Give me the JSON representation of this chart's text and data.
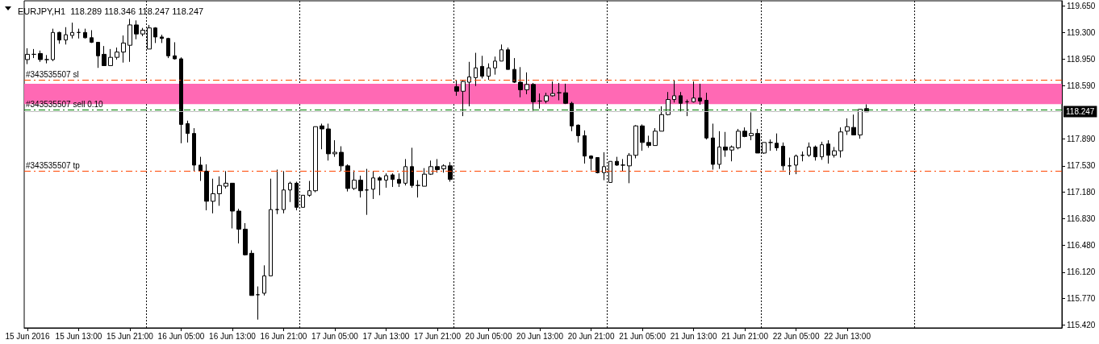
{
  "chart_data": {
    "type": "candlestick",
    "title": "EURJPY,H1  118.289 118.346 118.247 118.247",
    "categories": [
      "15 Jun 2016",
      null,
      null,
      null,
      null,
      null,
      null,
      null,
      "15 Jun 13:00",
      null,
      null,
      null,
      null,
      null,
      null,
      null,
      "15 Jun 21:00",
      null,
      null,
      null,
      null,
      null,
      null,
      null,
      "16 Jun 05:00",
      null,
      null,
      null,
      null,
      null,
      null,
      null,
      "16 Jun 13:00",
      null,
      null,
      null,
      null,
      null,
      null,
      null,
      "16 Jun 21:00",
      null,
      null,
      null,
      null,
      null,
      null,
      null,
      "17 Jun 05:00",
      null,
      null,
      null,
      null,
      null,
      null,
      null,
      "17 Jun 13:00",
      null,
      null,
      null,
      null,
      null,
      null,
      null,
      "17 Jun 21:00",
      null,
      null,
      null,
      null,
      null,
      null,
      null,
      "20 Jun 05:00",
      null,
      null,
      null,
      null,
      null,
      null,
      null,
      "20 Jun 13:00",
      null,
      null,
      null,
      null,
      null,
      null,
      null,
      "20 Jun 21:00",
      null,
      null,
      null,
      null,
      null,
      null,
      null,
      "21 Jun 05:00",
      null,
      null,
      null,
      null,
      null,
      null,
      null,
      "21 Jun 13:00",
      null,
      null,
      null,
      null,
      null,
      null,
      null,
      "21 Jun 21:00",
      null,
      null,
      null,
      null,
      null,
      null,
      null,
      "22 Jun 05:00",
      null,
      null,
      null,
      null,
      null,
      null,
      null,
      "22 Jun 13:00",
      null,
      null,
      null,
      null,
      null,
      null,
      null,
      null,
      null,
      null,
      null,
      null,
      null,
      null,
      null,
      null,
      null,
      null,
      null,
      null,
      null,
      null,
      null,
      null,
      null,
      null,
      null,
      null,
      null,
      null,
      null,
      null,
      null
    ],
    "ohlc": [
      [
        118.94,
        119.09,
        118.88,
        119.01
      ],
      [
        119.01,
        119.08,
        118.96,
        119.01
      ],
      [
        119.02,
        119.06,
        118.91,
        118.94
      ],
      [
        118.94,
        119.0,
        118.89,
        118.94
      ],
      [
        118.94,
        119.35,
        118.92,
        119.3
      ],
      [
        119.3,
        119.31,
        119.15,
        119.2
      ],
      [
        119.2,
        119.37,
        119.14,
        119.27
      ],
      [
        119.26,
        119.43,
        119.22,
        119.3
      ],
      [
        119.3,
        119.35,
        119.22,
        119.3
      ],
      [
        119.3,
        119.35,
        119.22,
        119.23
      ],
      [
        119.23,
        119.33,
        119.16,
        119.17
      ],
      [
        119.17,
        119.17,
        118.83,
        118.99
      ],
      [
        119.01,
        119.12,
        118.86,
        118.86
      ],
      [
        118.86,
        119.08,
        118.86,
        118.97
      ],
      [
        118.97,
        119.1,
        118.94,
        119.04
      ],
      [
        119.04,
        119.26,
        118.9,
        119.16
      ],
      [
        119.13,
        119.48,
        118.91,
        119.4
      ],
      [
        119.4,
        119.46,
        119.21,
        119.28
      ],
      [
        119.28,
        119.36,
        119.25,
        119.33
      ],
      [
        119.08,
        119.4,
        119.08,
        119.36
      ],
      [
        119.36,
        119.37,
        119.16,
        119.24
      ],
      [
        119.24,
        119.27,
        119.16,
        119.22
      ],
      [
        119.22,
        119.23,
        118.96,
        118.99
      ],
      [
        118.99,
        119.17,
        118.94,
        118.95
      ],
      [
        118.95,
        118.97,
        117.83,
        118.08
      ],
      [
        118.09,
        118.13,
        117.84,
        117.96
      ],
      [
        117.96,
        118.03,
        117.46,
        117.54
      ],
      [
        117.54,
        117.65,
        117.33,
        117.46
      ],
      [
        117.46,
        117.55,
        116.94,
        117.06
      ],
      [
        117.06,
        117.36,
        116.9,
        117.16
      ],
      [
        117.16,
        117.39,
        117.0,
        117.27
      ],
      [
        117.26,
        117.46,
        117.23,
        117.3
      ],
      [
        117.3,
        117.3,
        116.7,
        116.93
      ],
      [
        116.93,
        116.96,
        116.5,
        116.69
      ],
      [
        116.69,
        116.77,
        116.34,
        116.35
      ],
      [
        116.37,
        116.41,
        115.81,
        115.81
      ],
      [
        115.82,
        115.93,
        115.49,
        115.82
      ],
      [
        115.84,
        116.21,
        115.81,
        116.07
      ],
      [
        116.07,
        117.36,
        116.07,
        116.95
      ],
      [
        116.95,
        117.48,
        116.89,
        116.95
      ],
      [
        116.95,
        117.46,
        116.9,
        117.21
      ],
      [
        117.21,
        117.32,
        117.05,
        117.3
      ],
      [
        117.3,
        117.32,
        116.94,
        116.98
      ],
      [
        116.98,
        117.14,
        116.98,
        117.14
      ],
      [
        117.14,
        117.33,
        117.12,
        117.2
      ],
      [
        117.2,
        118.05,
        117.18,
        118.05
      ],
      [
        118.06,
        118.09,
        117.75,
        118.02
      ],
      [
        118.02,
        118.09,
        117.6,
        117.69
      ],
      [
        117.69,
        117.87,
        117.65,
        117.71
      ],
      [
        117.71,
        117.79,
        117.46,
        117.53
      ],
      [
        117.53,
        117.55,
        117.19,
        117.23
      ],
      [
        117.23,
        117.47,
        117.21,
        117.34
      ],
      [
        117.34,
        117.4,
        117.11,
        117.2
      ],
      [
        117.21,
        117.49,
        116.88,
        117.21
      ],
      [
        117.22,
        117.46,
        117.09,
        117.37
      ],
      [
        117.37,
        117.39,
        117.14,
        117.34
      ],
      [
        117.34,
        117.43,
        117.24,
        117.4
      ],
      [
        117.41,
        117.43,
        117.25,
        117.35
      ],
      [
        117.35,
        117.43,
        117.25,
        117.3
      ],
      [
        117.3,
        117.62,
        117.27,
        117.52
      ],
      [
        117.52,
        117.77,
        117.24,
        117.27
      ],
      [
        117.27,
        117.34,
        117.11,
        117.27
      ],
      [
        117.26,
        117.5,
        117.26,
        117.42
      ],
      [
        117.42,
        117.6,
        117.41,
        117.52
      ],
      [
        117.52,
        117.62,
        117.44,
        117.48
      ],
      [
        117.49,
        117.55,
        117.44,
        117.53
      ],
      [
        117.53,
        117.58,
        117.32,
        117.35
      ],
      [
        118.58,
        118.67,
        118.46,
        118.52
      ],
      [
        118.52,
        118.66,
        118.19,
        118.65
      ],
      [
        118.64,
        118.91,
        118.32,
        118.71
      ],
      [
        118.7,
        119.03,
        118.59,
        118.83
      ],
      [
        118.85,
        118.99,
        118.69,
        118.72
      ],
      [
        118.72,
        118.89,
        118.67,
        118.83
      ],
      [
        118.83,
        118.98,
        118.74,
        118.92
      ],
      [
        118.92,
        119.14,
        118.92,
        119.07
      ],
      [
        119.07,
        119.1,
        118.81,
        118.81
      ],
      [
        118.81,
        118.96,
        118.63,
        118.64
      ],
      [
        118.64,
        118.84,
        118.44,
        118.54
      ],
      [
        118.54,
        118.77,
        118.48,
        118.61
      ],
      [
        118.61,
        118.63,
        118.26,
        118.38
      ],
      [
        118.39,
        118.49,
        118.29,
        118.39
      ],
      [
        118.39,
        118.5,
        118.36,
        118.46
      ],
      [
        118.46,
        118.65,
        118.45,
        118.49
      ],
      [
        118.5,
        118.63,
        118.4,
        118.5
      ],
      [
        118.5,
        118.62,
        118.35,
        118.36
      ],
      [
        118.36,
        118.38,
        117.99,
        118.06
      ],
      [
        118.07,
        118.08,
        117.84,
        117.93
      ],
      [
        117.93,
        118.0,
        117.56,
        117.66
      ],
      [
        117.66,
        117.67,
        117.47,
        117.63
      ],
      [
        117.64,
        117.64,
        117.43,
        117.44
      ],
      [
        117.44,
        117.71,
        117.34,
        117.52
      ],
      [
        117.31,
        117.59,
        117.31,
        117.59
      ],
      [
        117.59,
        117.65,
        117.53,
        117.54
      ],
      [
        117.54,
        117.62,
        117.46,
        117.54
      ],
      [
        117.53,
        117.7,
        117.3,
        117.67
      ],
      [
        117.67,
        118.07,
        117.63,
        118.06
      ],
      [
        118.06,
        118.08,
        117.73,
        117.84
      ],
      [
        117.84,
        117.93,
        117.77,
        117.8
      ],
      [
        117.8,
        118.03,
        117.8,
        117.99
      ],
      [
        117.99,
        118.32,
        117.99,
        118.21
      ],
      [
        118.21,
        118.51,
        118.2,
        118.41
      ],
      [
        118.41,
        118.67,
        118.37,
        118.46
      ],
      [
        118.46,
        118.51,
        118.25,
        118.36
      ],
      [
        118.38,
        118.41,
        118.19,
        118.38
      ],
      [
        118.38,
        118.65,
        118.37,
        118.43
      ],
      [
        118.43,
        118.62,
        118.34,
        118.39
      ],
      [
        118.4,
        118.5,
        117.88,
        117.9
      ],
      [
        117.9,
        118.09,
        117.48,
        117.55
      ],
      [
        117.55,
        117.99,
        117.49,
        117.78
      ],
      [
        117.78,
        117.98,
        117.65,
        117.74
      ],
      [
        117.74,
        117.8,
        117.59,
        117.78
      ],
      [
        117.77,
        118.02,
        117.75,
        117.99
      ],
      [
        117.99,
        118.04,
        117.91,
        117.92
      ],
      [
        117.93,
        118.24,
        117.87,
        117.96
      ],
      [
        117.96,
        118.02,
        117.7,
        117.7
      ],
      [
        117.7,
        117.84,
        117.69,
        117.84
      ],
      [
        117.84,
        117.88,
        117.73,
        117.84
      ],
      [
        117.83,
        117.96,
        117.73,
        117.77
      ],
      [
        117.79,
        117.84,
        117.47,
        117.53
      ],
      [
        117.53,
        117.64,
        117.41,
        117.53
      ],
      [
        117.54,
        117.68,
        117.42,
        117.66
      ],
      [
        117.67,
        117.72,
        117.59,
        117.67
      ],
      [
        117.67,
        117.84,
        117.65,
        117.78
      ],
      [
        117.78,
        117.8,
        117.6,
        117.65
      ],
      [
        117.65,
        117.85,
        117.61,
        117.81
      ],
      [
        117.82,
        117.87,
        117.56,
        117.67
      ],
      [
        117.67,
        117.78,
        117.64,
        117.73
      ],
      [
        117.73,
        118.04,
        117.64,
        117.98
      ],
      [
        117.99,
        118.16,
        117.94,
        118.05
      ],
      [
        118.04,
        118.21,
        117.94,
        117.94
      ],
      [
        117.94,
        118.28,
        117.89,
        118.28
      ],
      [
        118.289,
        118.346,
        118.247,
        118.247
      ],
      null,
      null,
      null,
      null,
      null,
      null,
      null,
      null,
      null,
      null,
      null,
      null,
      null,
      null,
      null,
      null,
      null,
      null,
      null,
      null,
      null,
      null,
      null,
      null,
      null,
      null,
      null,
      null,
      null,
      null
    ],
    "ylim": [
      115.38,
      119.72
    ],
    "yticks": [
      {
        "value": 119.65,
        "label": "119.650"
      },
      {
        "value": 119.3,
        "label": "119.300"
      },
      {
        "value": 118.95,
        "label": "118.950"
      },
      {
        "value": 118.59,
        "label": "118.590"
      },
      {
        "value": 117.89,
        "label": "117.890"
      },
      {
        "value": 117.53,
        "label": "117.530"
      },
      {
        "value": 117.18,
        "label": "117.180"
      },
      {
        "value": 116.83,
        "label": "116.830"
      },
      {
        "value": 116.48,
        "label": "116.480"
      },
      {
        "value": 116.12,
        "label": "116.120"
      },
      {
        "value": 115.77,
        "label": "115.770"
      },
      {
        "value": 115.42,
        "label": "115.420"
      }
    ],
    "ref_lines": [
      {
        "axis": "y",
        "value": 118.67,
        "label": "#343535507 sl",
        "color": "#ff4500",
        "line_style": "dashed"
      },
      {
        "axis": "y",
        "value": 118.27,
        "label": "#343535507 sell 0.10",
        "color": "#008000",
        "line_style": "dashed"
      },
      {
        "axis": "y",
        "value": 117.46,
        "label": "#343535507 tp",
        "color": "#ff4500",
        "line_style": "dashed"
      },
      {
        "axis": "y",
        "value": 118.247,
        "label": "118.247",
        "color": "#c0c0c0",
        "line_style": "solid"
      }
    ],
    "bands": [
      {
        "axis": "y",
        "from": 118.35,
        "to": 118.62,
        "color": "#ff69b4"
      }
    ]
  }
}
